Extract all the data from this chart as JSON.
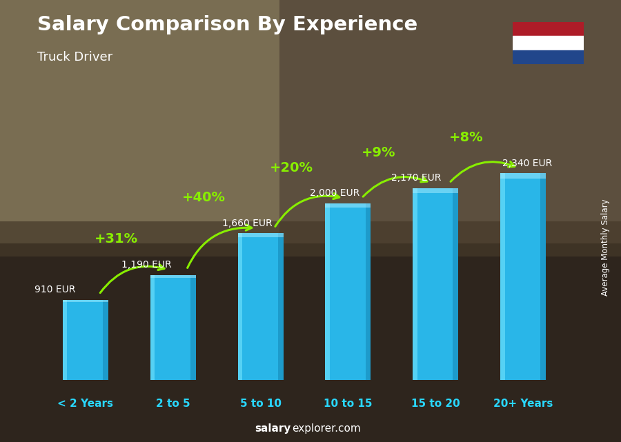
{
  "categories": [
    "< 2 Years",
    "2 to 5",
    "5 to 10",
    "10 to 15",
    "15 to 20",
    "20+ Years"
  ],
  "values": [
    910,
    1190,
    1660,
    2000,
    2170,
    2340
  ],
  "labels": [
    "910 EUR",
    "1,190 EUR",
    "1,660 EUR",
    "2,000 EUR",
    "2,170 EUR",
    "2,340 EUR"
  ],
  "pct_labels": [
    "+31%",
    "+40%",
    "+20%",
    "+9%",
    "+8%"
  ],
  "bar_color_main": "#29b6e8",
  "bar_color_left": "#55d8ff",
  "bar_color_right": "#1a8ab5",
  "title": "Salary Comparison By Experience",
  "subtitle": "Truck Driver",
  "side_label": "Average Monthly Salary",
  "footer_bold": "salary",
  "footer_normal": "explorer.com",
  "title_color": "#ffffff",
  "subtitle_color": "#ffffff",
  "label_color": "#ffffff",
  "cat_label_color": "#29d8ff",
  "pct_color": "#88ee00",
  "arrow_color": "#88ee00",
  "bg_top_color": "#c8b89a",
  "bg_bottom_color": "#3a3020",
  "ylim_max": 3000,
  "bar_width": 0.52,
  "flag_red": "#AE1C28",
  "flag_white": "#ffffff",
  "flag_blue": "#21468B"
}
